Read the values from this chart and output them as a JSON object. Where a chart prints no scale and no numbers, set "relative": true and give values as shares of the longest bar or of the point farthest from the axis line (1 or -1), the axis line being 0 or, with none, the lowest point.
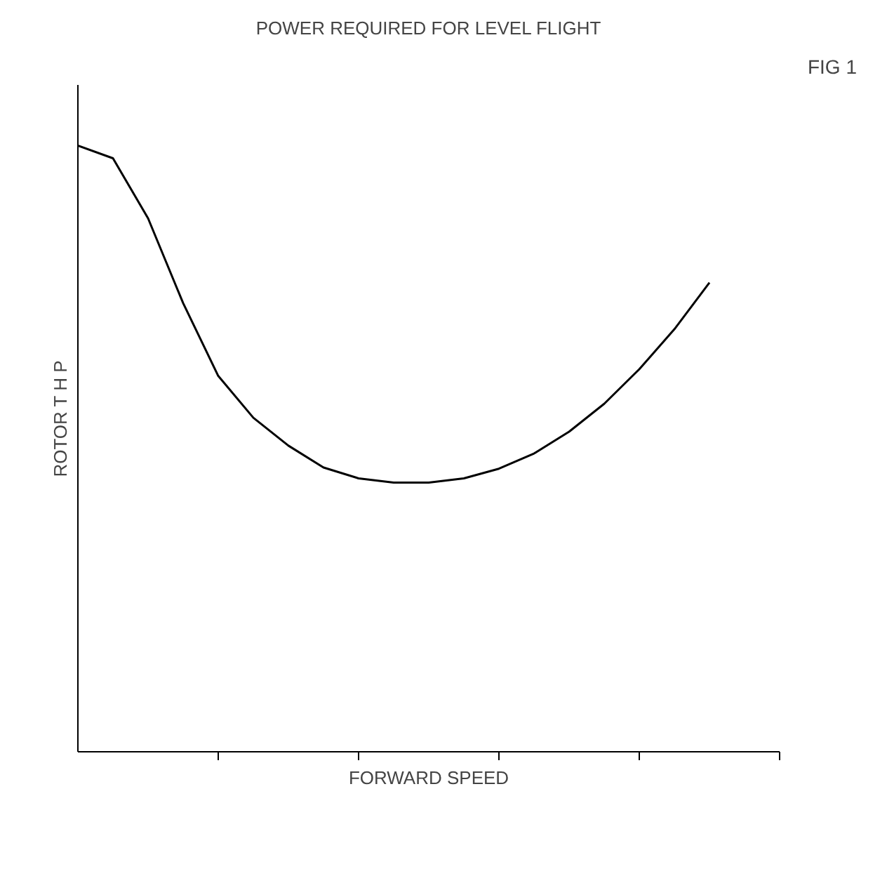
{
  "chart_data": {
    "type": "line",
    "title": "POWER REQUIRED FOR LEVEL FLIGHT",
    "xlabel": "FORWARD SPEED",
    "ylabel": "ROTOR T H P",
    "annotations": [
      "FIG 1"
    ],
    "relative": true,
    "grid": false,
    "marker": "none",
    "line_style": "solid",
    "categories": [
      null,
      null,
      null,
      null,
      null,
      null,
      null,
      null,
      null,
      null,
      null,
      null,
      null,
      null,
      null,
      null,
      null,
      null,
      null
    ],
    "series": [
      {
        "color": "#000000",
        "values": [
          1.0,
          0.979,
          0.88,
          0.74,
          0.62,
          0.551,
          0.505,
          0.469,
          0.451,
          0.444,
          0.444,
          0.451,
          0.467,
          0.492,
          0.528,
          0.574,
          0.631,
          0.697,
          0.774
        ]
      }
    ]
  }
}
